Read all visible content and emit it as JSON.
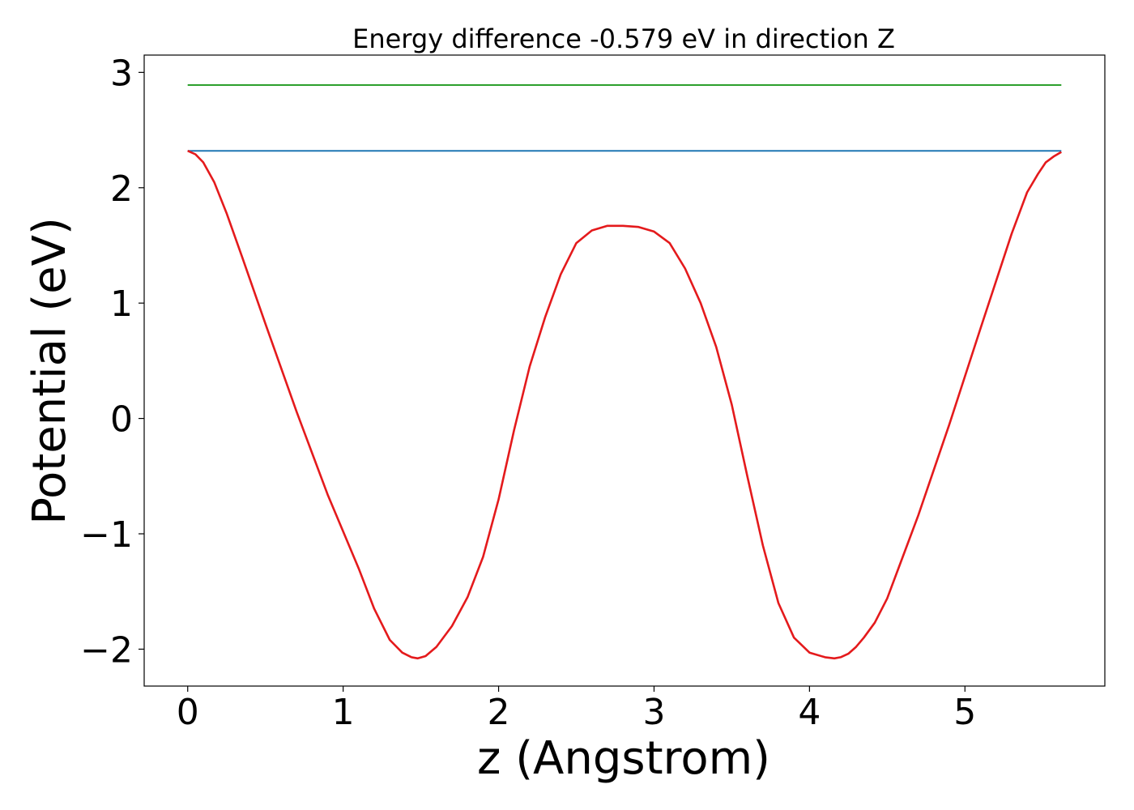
{
  "chart_data": {
    "type": "line",
    "title": "Energy difference -0.579 eV in direction Z",
    "xlabel": "z (Angstrom)",
    "ylabel": "Potential (eV)",
    "xlim": [
      -0.28,
      5.9
    ],
    "ylim": [
      -2.32,
      3.15
    ],
    "xticks": [
      0,
      1,
      2,
      3,
      4,
      5
    ],
    "xtick_labels": [
      "0",
      "1",
      "2",
      "3",
      "4",
      "5"
    ],
    "yticks": [
      -2,
      -1,
      0,
      1,
      2,
      3
    ],
    "ytick_labels": [
      "−2",
      "−1",
      "0",
      "1",
      "2",
      "3"
    ],
    "grid": false,
    "series": [
      {
        "color": "#2ca02c",
        "x": [
          0,
          5.62
        ],
        "y": [
          2.89,
          2.89
        ]
      },
      {
        "color": "#1f77b4",
        "x": [
          0,
          5.62
        ],
        "y": [
          2.32,
          2.32
        ]
      },
      {
        "color": "#e41a1c",
        "x": [
          0,
          0.05,
          0.1,
          0.17,
          0.25,
          0.35,
          0.5,
          0.7,
          0.9,
          1.1,
          1.2,
          1.3,
          1.38,
          1.44,
          1.48,
          1.53,
          1.6,
          1.7,
          1.8,
          1.9,
          2.0,
          2.1,
          2.2,
          2.3,
          2.4,
          2.5,
          2.6,
          2.7,
          2.8,
          2.9,
          3.0,
          3.1,
          3.2,
          3.3,
          3.4,
          3.5,
          3.6,
          3.7,
          3.8,
          3.9,
          4.0,
          4.1,
          4.16,
          4.2,
          4.25,
          4.3,
          4.35,
          4.42,
          4.5,
          4.6,
          4.7,
          4.9,
          5.1,
          5.3,
          5.4,
          5.47,
          5.52,
          5.57,
          5.62
        ],
        "y": [
          2.32,
          2.29,
          2.22,
          2.05,
          1.78,
          1.4,
          0.82,
          0.06,
          -0.66,
          -1.3,
          -1.65,
          -1.92,
          -2.03,
          -2.07,
          -2.08,
          -2.06,
          -1.98,
          -1.8,
          -1.55,
          -1.2,
          -0.7,
          -0.1,
          0.45,
          0.88,
          1.25,
          1.52,
          1.63,
          1.67,
          1.67,
          1.66,
          1.62,
          1.52,
          1.3,
          1.0,
          0.62,
          0.12,
          -0.5,
          -1.1,
          -1.6,
          -1.9,
          -2.03,
          -2.07,
          -2.08,
          -2.07,
          -2.04,
          -1.98,
          -1.9,
          -1.77,
          -1.56,
          -1.2,
          -0.84,
          -0.05,
          0.78,
          1.6,
          1.96,
          2.12,
          2.22,
          2.27,
          2.31
        ]
      }
    ]
  }
}
